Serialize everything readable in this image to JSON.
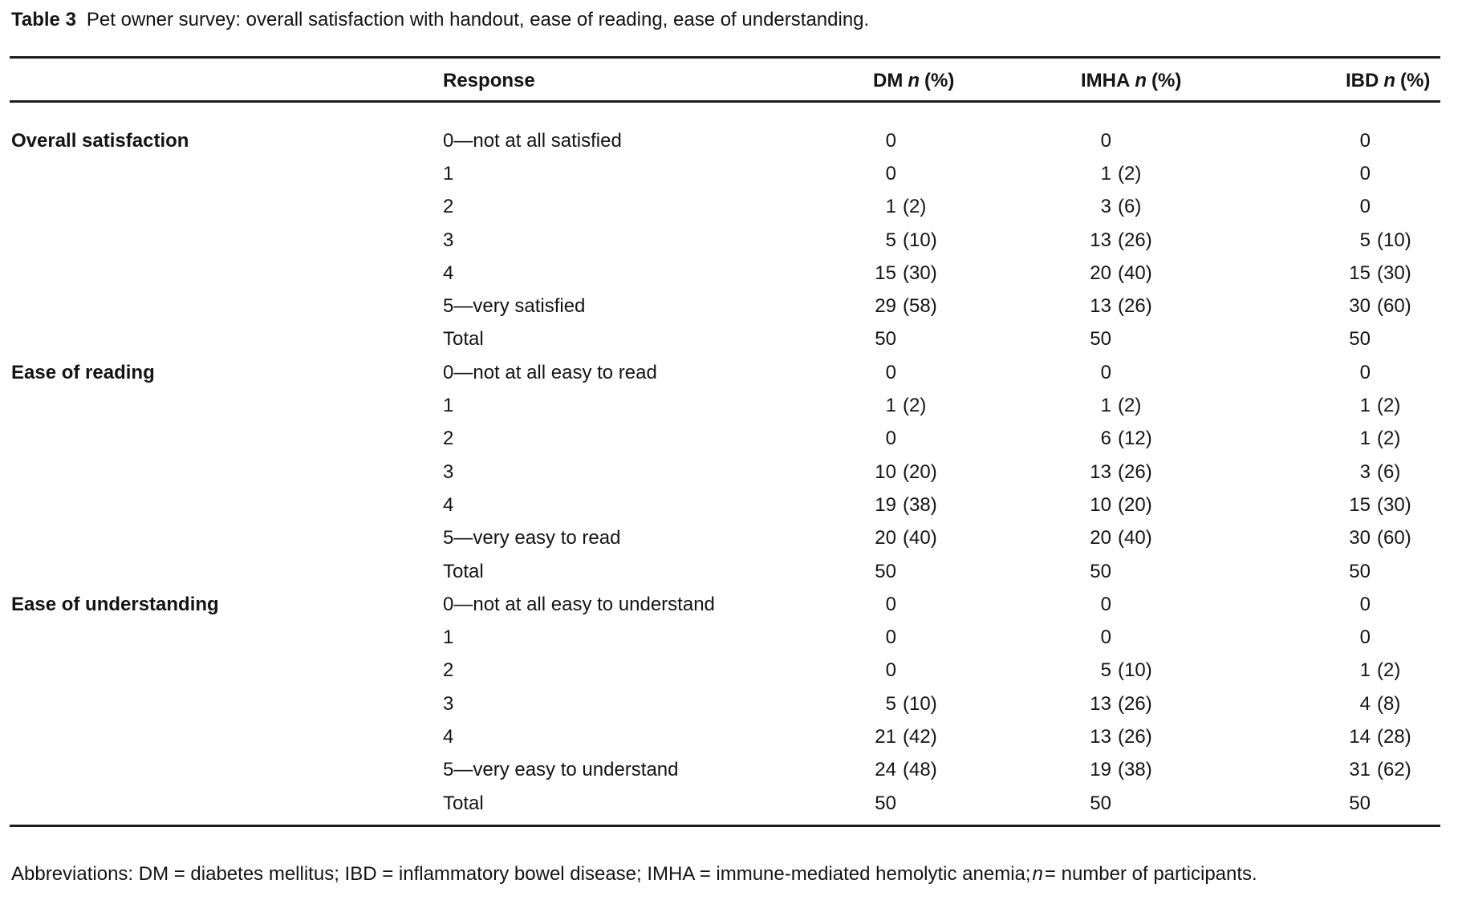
{
  "title": {
    "label": "Table 3",
    "caption": "Pet owner survey: overall satisfaction with handout, ease of reading, ease of understanding."
  },
  "columns": {
    "response": "Response",
    "dm": {
      "prefix": "DM",
      "n": "n",
      "suffix": "(%)"
    },
    "imha": {
      "prefix": "IMHA",
      "n": "n",
      "suffix": "(%)"
    },
    "ibd": {
      "prefix": "IBD",
      "n": "n",
      "suffix": "(%)"
    }
  },
  "sections": [
    {
      "label": "Overall satisfaction",
      "rows": [
        {
          "response": "0—not at all satisfied",
          "dm_n": "0",
          "dm_pct": "",
          "imha_n": "0",
          "imha_pct": "",
          "ibd_n": "0",
          "ibd_pct": ""
        },
        {
          "response": "1",
          "dm_n": "0",
          "dm_pct": "",
          "imha_n": "1",
          "imha_pct": "(2)",
          "ibd_n": "0",
          "ibd_pct": ""
        },
        {
          "response": "2",
          "dm_n": "1",
          "dm_pct": "(2)",
          "imha_n": "3",
          "imha_pct": "(6)",
          "ibd_n": "0",
          "ibd_pct": ""
        },
        {
          "response": "3",
          "dm_n": "5",
          "dm_pct": "(10)",
          "imha_n": "13",
          "imha_pct": "(26)",
          "ibd_n": "5",
          "ibd_pct": "(10)"
        },
        {
          "response": "4",
          "dm_n": "15",
          "dm_pct": "(30)",
          "imha_n": "20",
          "imha_pct": "(40)",
          "ibd_n": "15",
          "ibd_pct": "(30)"
        },
        {
          "response": "5—very satisfied",
          "dm_n": "29",
          "dm_pct": "(58)",
          "imha_n": "13",
          "imha_pct": "(26)",
          "ibd_n": "30",
          "ibd_pct": "(60)"
        },
        {
          "response": "Total",
          "dm_n": "50",
          "dm_pct": "",
          "imha_n": "50",
          "imha_pct": "",
          "ibd_n": "50",
          "ibd_pct": ""
        }
      ]
    },
    {
      "label": "Ease of reading",
      "rows": [
        {
          "response": "0—not at all easy to read",
          "dm_n": "0",
          "dm_pct": "",
          "imha_n": "0",
          "imha_pct": "",
          "ibd_n": "0",
          "ibd_pct": ""
        },
        {
          "response": "1",
          "dm_n": "1",
          "dm_pct": "(2)",
          "imha_n": "1",
          "imha_pct": "(2)",
          "ibd_n": "1",
          "ibd_pct": "(2)"
        },
        {
          "response": "2",
          "dm_n": "0",
          "dm_pct": "",
          "imha_n": "6",
          "imha_pct": "(12)",
          "ibd_n": "1",
          "ibd_pct": "(2)"
        },
        {
          "response": "3",
          "dm_n": "10",
          "dm_pct": "(20)",
          "imha_n": "13",
          "imha_pct": "(26)",
          "ibd_n": "3",
          "ibd_pct": "(6)"
        },
        {
          "response": "4",
          "dm_n": "19",
          "dm_pct": "(38)",
          "imha_n": "10",
          "imha_pct": "(20)",
          "ibd_n": "15",
          "ibd_pct": "(30)"
        },
        {
          "response": "5—very easy to read",
          "dm_n": "20",
          "dm_pct": "(40)",
          "imha_n": "20",
          "imha_pct": "(40)",
          "ibd_n": "30",
          "ibd_pct": "(60)"
        },
        {
          "response": "Total",
          "dm_n": "50",
          "dm_pct": "",
          "imha_n": "50",
          "imha_pct": "",
          "ibd_n": "50",
          "ibd_pct": ""
        }
      ]
    },
    {
      "label": "Ease of understanding",
      "rows": [
        {
          "response": "0—not at all easy to understand",
          "dm_n": "0",
          "dm_pct": "",
          "imha_n": "0",
          "imha_pct": "",
          "ibd_n": "0",
          "ibd_pct": ""
        },
        {
          "response": "1",
          "dm_n": "0",
          "dm_pct": "",
          "imha_n": "0",
          "imha_pct": "",
          "ibd_n": "0",
          "ibd_pct": ""
        },
        {
          "response": "2",
          "dm_n": "0",
          "dm_pct": "",
          "imha_n": "5",
          "imha_pct": "(10)",
          "ibd_n": "1",
          "ibd_pct": "(2)"
        },
        {
          "response": "3",
          "dm_n": "5",
          "dm_pct": "(10)",
          "imha_n": "13",
          "imha_pct": "(26)",
          "ibd_n": "4",
          "ibd_pct": "(8)"
        },
        {
          "response": "4",
          "dm_n": "21",
          "dm_pct": "(42)",
          "imha_n": "13",
          "imha_pct": "(26)",
          "ibd_n": "14",
          "ibd_pct": "(28)"
        },
        {
          "response": "5—very easy to understand",
          "dm_n": "24",
          "dm_pct": "(48)",
          "imha_n": "19",
          "imha_pct": "(38)",
          "ibd_n": "31",
          "ibd_pct": "(62)"
        },
        {
          "response": "Total",
          "dm_n": "50",
          "dm_pct": "",
          "imha_n": "50",
          "imha_pct": "",
          "ibd_n": "50",
          "ibd_pct": ""
        }
      ]
    }
  ],
  "footer": {
    "prefix": "Abbreviations: DM = diabetes mellitus; IBD = inflammatory bowel disease; IMHA = immune-mediated hemolytic anemia;",
    "n": "n",
    "suffix": "= number of participants."
  },
  "colors": {
    "text": "#141414",
    "rule": "#1c1c1c",
    "background": "#ffffff"
  }
}
